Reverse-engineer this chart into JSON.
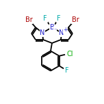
{
  "bg_color": "#ffffff",
  "N_color": "#2222cc",
  "B_color": "#2222cc",
  "F_color": "#00aaaa",
  "Cl_color": "#00aa00",
  "Br_color": "#aa0000",
  "line_color": "#000000",
  "line_width": 1.3,
  "figsize": [
    1.52,
    1.52
  ],
  "dpi": 100,
  "xlim": [
    0,
    152
  ],
  "ylim": [
    0,
    152
  ]
}
